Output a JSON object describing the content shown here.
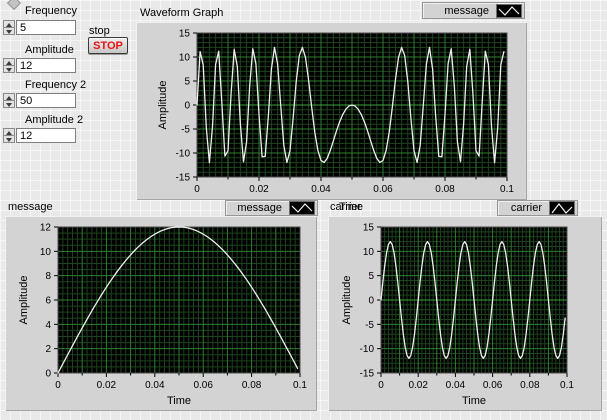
{
  "window": {
    "background": "#e9e9e9",
    "grid_line_color": "#f6f6f6"
  },
  "controls": {
    "frequency": {
      "label": "Frequency",
      "value": "5"
    },
    "amplitude": {
      "label": "Amplitude",
      "value": "12"
    },
    "frequency2": {
      "label": "Frequency 2",
      "value": "50"
    },
    "amplitude2": {
      "label": "Amplitude 2",
      "value": "12"
    },
    "stop": {
      "label": "stop",
      "button_text": "STOP",
      "button_text_color": "#e81313"
    }
  },
  "chart_data": [
    {
      "id": "waveform-graph",
      "type": "line",
      "title": "Waveform Graph",
      "legend": {
        "label": "message",
        "icon": "waveform-icon"
      },
      "xlabel": "Time",
      "xlabel_pos": "outside",
      "ylabel": "Amplitude",
      "xlim": [
        0,
        0.1
      ],
      "ylim": [
        -15,
        15
      ],
      "xticks": [
        0,
        0.02,
        0.04,
        0.06,
        0.08,
        0.1
      ],
      "yticks": [
        15,
        10,
        5,
        0,
        -5,
        -10,
        -15
      ],
      "minor_x": 0.002,
      "minor_y": 1,
      "major_x": 0.01,
      "major_y": 5,
      "plot_bg": "#000000",
      "grid_minor_color": "#1e431e",
      "grid_major_color": "#2e7f2e",
      "zero_line_color": "#3aa33a",
      "frame_color": "#4d4d4d",
      "series": [
        {
          "name": "message",
          "color": "#efefef",
          "kind": "pm",
          "formula": "y = A2*sin(pi*A1*sin(2*pi*F1*t))",
          "params": {
            "A1": 12,
            "F1": 5,
            "A2": 12
          },
          "t_start": 0,
          "dt": 0.001,
          "n": 100
        }
      ]
    },
    {
      "id": "message-graph",
      "type": "line",
      "title": "message",
      "legend": {
        "label": "message",
        "icon": "waveform-icon"
      },
      "xlabel": "Time",
      "xlabel_pos": "inside",
      "ylabel": "Amplitude",
      "xlim": [
        0,
        0.1
      ],
      "ylim": [
        0,
        12
      ],
      "xticks": [
        0,
        0.02,
        0.04,
        0.06,
        0.08,
        0.1
      ],
      "yticks": [
        12,
        10,
        8,
        6,
        4,
        2,
        0
      ],
      "minor_x": 0.002,
      "minor_y": 0.5,
      "major_x": 0.01,
      "major_y": 2,
      "plot_bg": "#000000",
      "grid_minor_color": "#1e431e",
      "grid_major_color": "#2e7f2e",
      "zero_line_color": "#2e7f2e",
      "frame_color": "#4d4d4d",
      "series": [
        {
          "name": "message",
          "color": "#efefef",
          "kind": "sine",
          "formula": "y = A*sin(2*pi*F*t)",
          "params": {
            "amplitude": 12,
            "frequency": 5
          },
          "t_start": 0,
          "dt": 0.001,
          "n": 100
        }
      ]
    },
    {
      "id": "carrier-graph",
      "type": "line",
      "title": "carrier",
      "legend": {
        "label": "carrier",
        "icon": "triangle-wave-icon"
      },
      "xlabel": "Time",
      "xlabel_pos": "inside",
      "ylabel": "Amplitude",
      "xlim": [
        0,
        0.1
      ],
      "ylim": [
        -15,
        15
      ],
      "xticks": [
        0,
        0.02,
        0.04,
        0.06,
        0.08,
        0.1
      ],
      "yticks": [
        15,
        10,
        5,
        0,
        -5,
        -10,
        -15
      ],
      "minor_x": 0.002,
      "minor_y": 1,
      "major_x": 0.01,
      "major_y": 5,
      "plot_bg": "#000000",
      "grid_minor_color": "#1e431e",
      "grid_major_color": "#2e7f2e",
      "zero_line_color": "#3aa33a",
      "frame_color": "#4d4d4d",
      "series": [
        {
          "name": "carrier",
          "color": "#efefef",
          "kind": "sine",
          "formula": "y = A*sin(2*pi*F*t)",
          "params": {
            "amplitude": 12,
            "frequency": 50
          },
          "t_start": 0,
          "dt": 0.001,
          "n": 100
        }
      ]
    }
  ]
}
